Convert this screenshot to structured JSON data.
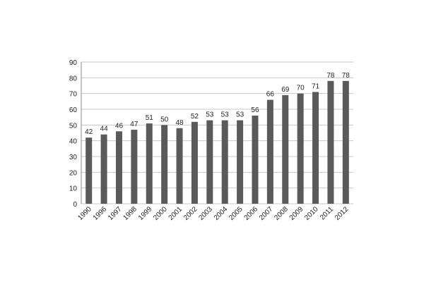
{
  "chart_data": {
    "type": "bar",
    "categories": [
      "1990",
      "1996",
      "1997",
      "1998",
      "1999",
      "2000",
      "2001",
      "2002",
      "2003",
      "2004",
      "2005",
      "2006",
      "2007",
      "2008",
      "2009",
      "2010",
      "2011",
      "2012"
    ],
    "values": [
      42,
      44,
      46,
      47,
      51,
      50,
      48,
      52,
      53,
      53,
      53,
      56,
      66,
      69,
      70,
      71,
      78,
      78
    ],
    "color": "#5a5a5a",
    "ylim": [
      0,
      90
    ],
    "yticks": [
      0,
      10,
      20,
      30,
      40,
      50,
      60,
      70,
      80,
      90
    ],
    "grid": true,
    "data_labels": true
  }
}
